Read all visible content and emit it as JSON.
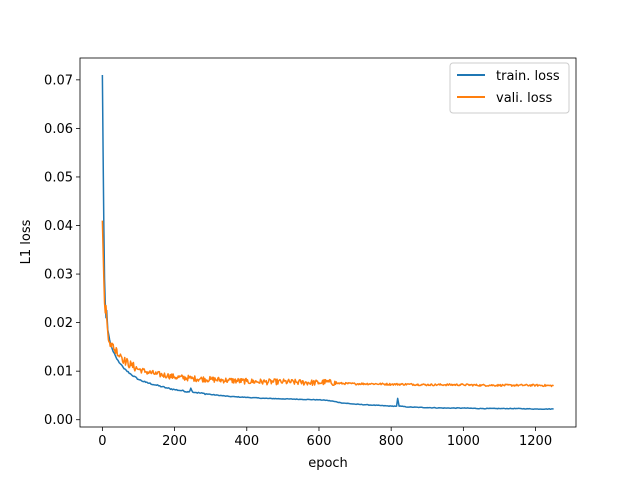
{
  "chart_data": {
    "type": "line",
    "xlabel": "epoch",
    "ylabel": "L1 loss",
    "xlim": [
      -62,
      1312
    ],
    "ylim": [
      -0.0015,
      0.0745
    ],
    "xticks": [
      0,
      200,
      400,
      600,
      800,
      1000,
      1200
    ],
    "yticks": [
      0.0,
      0.01,
      0.02,
      0.03,
      0.04,
      0.05,
      0.06,
      0.07
    ],
    "ytick_labels": [
      "0.00",
      "0.01",
      "0.02",
      "0.03",
      "0.04",
      "0.05",
      "0.06",
      "0.07"
    ],
    "grid": false,
    "legend_position": "top-right",
    "series": [
      {
        "name": "train. loss",
        "color": "#1f77b4",
        "x": [
          0,
          2,
          4,
          6,
          8,
          10,
          12,
          15,
          20,
          25,
          30,
          40,
          50,
          60,
          80,
          100,
          120,
          150,
          180,
          200,
          220,
          240,
          245,
          250,
          260,
          300,
          350,
          400,
          450,
          500,
          550,
          600,
          620,
          640,
          660,
          700,
          750,
          800,
          815,
          818,
          822,
          850,
          900,
          950,
          1000,
          1050,
          1100,
          1150,
          1200,
          1250
        ],
        "values": [
          0.071,
          0.055,
          0.04,
          0.029,
          0.024,
          0.021,
          0.0225,
          0.0185,
          0.0165,
          0.015,
          0.014,
          0.0125,
          0.0115,
          0.0105,
          0.0093,
          0.0083,
          0.0077,
          0.0071,
          0.0065,
          0.0062,
          0.006,
          0.0057,
          0.0065,
          0.0057,
          0.0056,
          0.0052,
          0.0048,
          0.0046,
          0.0044,
          0.0043,
          0.0042,
          0.0041,
          0.004,
          0.0038,
          0.0035,
          0.0032,
          0.003,
          0.0028,
          0.0028,
          0.0044,
          0.0028,
          0.0026,
          0.0025,
          0.0024,
          0.0024,
          0.0023,
          0.0023,
          0.0023,
          0.0022,
          0.0022
        ]
      },
      {
        "name": "vali. loss",
        "color": "#ff7f0e",
        "x": [
          0,
          2,
          4,
          6,
          8,
          10,
          12,
          15,
          20,
          25,
          30,
          35,
          40,
          45,
          50,
          60,
          80,
          100,
          120,
          150,
          180,
          200,
          250,
          300,
          350,
          400,
          450,
          500,
          550,
          600,
          620,
          650,
          700,
          750,
          800,
          850,
          900,
          950,
          1000,
          1050,
          1100,
          1150,
          1200,
          1250
        ],
        "values": [
          0.041,
          0.035,
          0.029,
          0.024,
          0.022,
          0.0235,
          0.021,
          0.018,
          0.016,
          0.015,
          0.0155,
          0.014,
          0.0145,
          0.0132,
          0.0135,
          0.0122,
          0.0112,
          0.0104,
          0.0099,
          0.0094,
          0.0091,
          0.0088,
          0.0085,
          0.0083,
          0.0081,
          0.0079,
          0.0078,
          0.0078,
          0.0077,
          0.0076,
          0.0078,
          0.0075,
          0.0074,
          0.0074,
          0.0073,
          0.0073,
          0.0072,
          0.0072,
          0.0072,
          0.0071,
          0.0071,
          0.0071,
          0.0071,
          0.007
        ]
      }
    ]
  }
}
